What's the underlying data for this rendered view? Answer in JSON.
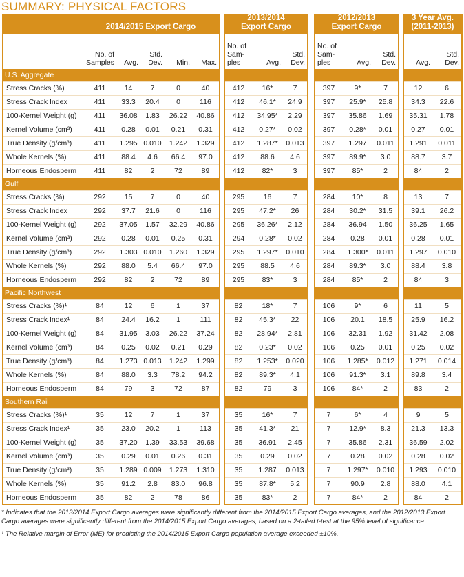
{
  "title": "SUMMARY: PHYSICAL FACTORS",
  "colors": {
    "accent": "#D8901C"
  },
  "panels": [
    {
      "title": "2014/2015 Export Cargo",
      "columns": [
        "No. of\nSamples",
        "Avg.",
        "Std.\nDev.",
        "Min.",
        "Max."
      ]
    },
    {
      "title": "2013/2014\nExport Cargo",
      "columns": [
        "No. of\nSam-\nples",
        "Avg.",
        "Std.\nDev."
      ]
    },
    {
      "title": "2012/2013\nExport Cargo",
      "columns": [
        "No. of\nSam-\nples",
        "Avg.",
        "Std.\nDev."
      ]
    },
    {
      "title": "3 Year Avg.\n(2011-2013)",
      "columns": [
        "Avg.",
        "Std.\nDev."
      ]
    }
  ],
  "sections": [
    {
      "name": "U.S. Aggregate",
      "rows": [
        [
          "Stress Cracks (%)",
          "411",
          "14",
          "7",
          "0",
          "40",
          "412",
          "16*",
          "7",
          "397",
          "9*",
          "7",
          "12",
          "6"
        ],
        [
          "Stress Crack Index",
          "411",
          "33.3",
          "20.4",
          "0",
          "116",
          "412",
          "46.1*",
          "24.9",
          "397",
          "25.9*",
          "25.8",
          "34.3",
          "22.6"
        ],
        [
          "100-Kernel Weight (g)",
          "411",
          "36.08",
          "1.83",
          "26.22",
          "40.86",
          "412",
          "34.95*",
          "2.29",
          "397",
          "35.86",
          "1.69",
          "35.31",
          "1.78"
        ],
        [
          "Kernel Volume (cm³)",
          "411",
          "0.28",
          "0.01",
          "0.21",
          "0.31",
          "412",
          "0.27*",
          "0.02",
          "397",
          "0.28*",
          "0.01",
          "0.27",
          "0.01"
        ],
        [
          "True Density (g/cm³)",
          "411",
          "1.295",
          "0.010",
          "1.242",
          "1.329",
          "412",
          "1.287*",
          "0.013",
          "397",
          "1.297",
          "0.011",
          "1.291",
          "0.011"
        ],
        [
          "Whole Kernels (%)",
          "411",
          "88.4",
          "4.6",
          "66.4",
          "97.0",
          "412",
          "88.6",
          "4.6",
          "397",
          "89.9*",
          "3.0",
          "88.7",
          "3.7"
        ],
        [
          "Horneous Endosperm",
          "411",
          "82",
          "2",
          "72",
          "89",
          "412",
          "82*",
          "3",
          "397",
          "85*",
          "2",
          "84",
          "2"
        ]
      ]
    },
    {
      "name": "Gulf",
      "rows": [
        [
          "Stress Cracks (%)",
          "292",
          "15",
          "7",
          "0",
          "40",
          "295",
          "16",
          "7",
          "284",
          "10*",
          "8",
          "13",
          "7"
        ],
        [
          "Stress Crack Index",
          "292",
          "37.7",
          "21.6",
          "0",
          "116",
          "295",
          "47.2*",
          "26",
          "284",
          "30.2*",
          "31.5",
          "39.1",
          "26.2"
        ],
        [
          "100-Kernel Weight (g)",
          "292",
          "37.05",
          "1.57",
          "32.29",
          "40.86",
          "295",
          "36.26*",
          "2.12",
          "284",
          "36.94",
          "1.50",
          "36.25",
          "1.65"
        ],
        [
          "Kernel Volume (cm³)",
          "292",
          "0.28",
          "0.01",
          "0.25",
          "0.31",
          "294",
          "0.28*",
          "0.02",
          "284",
          "0.28",
          "0.01",
          "0.28",
          "0.01"
        ],
        [
          "True Density (g/cm³)",
          "292",
          "1.303",
          "0.010",
          "1.260",
          "1.329",
          "295",
          "1.297*",
          "0.010",
          "284",
          "1.300*",
          "0.011",
          "1.297",
          "0.010"
        ],
        [
          "Whole Kernels (%)",
          "292",
          "88.0",
          "5.4",
          "66.4",
          "97.0",
          "295",
          "88.5",
          "4.6",
          "284",
          "89.3*",
          "3.0",
          "88.4",
          "3.8"
        ],
        [
          "Horneous Endosperm",
          "292",
          "82",
          "2",
          "72",
          "89",
          "295",
          "83*",
          "3",
          "284",
          "85*",
          "2",
          "84",
          "3"
        ]
      ]
    },
    {
      "name": "Pacific Northwest",
      "rows": [
        [
          "Stress Cracks (%)¹",
          "84",
          "12",
          "6",
          "1",
          "37",
          "82",
          "18*",
          "7",
          "106",
          "9*",
          "6",
          "11",
          "5"
        ],
        [
          "Stress Crack Index¹",
          "84",
          "24.4",
          "16.2",
          "1",
          "111",
          "82",
          "45.3*",
          "22",
          "106",
          "20.1",
          "18.5",
          "25.9",
          "16.2"
        ],
        [
          "100-Kernel Weight (g)",
          "84",
          "31.95",
          "3.03",
          "26.22",
          "37.24",
          "82",
          "28.94*",
          "2.81",
          "106",
          "32.31",
          "1.92",
          "31.42",
          "2.08"
        ],
        [
          "Kernel Volume (cm³)",
          "84",
          "0.25",
          "0.02",
          "0.21",
          "0.29",
          "82",
          "0.23*",
          "0.02",
          "106",
          "0.25",
          "0.01",
          "0.25",
          "0.02"
        ],
        [
          "True Density (g/cm³)",
          "84",
          "1.273",
          "0.013",
          "1.242",
          "1.299",
          "82",
          "1.253*",
          "0.020",
          "106",
          "1.285*",
          "0.012",
          "1.271",
          "0.014"
        ],
        [
          "Whole Kernels (%)",
          "84",
          "88.0",
          "3.3",
          "78.2",
          "94.2",
          "82",
          "89.3*",
          "4.1",
          "106",
          "91.3*",
          "3.1",
          "89.8",
          "3.4"
        ],
        [
          "Horneous Endosperm",
          "84",
          "79",
          "3",
          "72",
          "87",
          "82",
          "79",
          "3",
          "106",
          "84*",
          "2",
          "83",
          "2"
        ]
      ]
    },
    {
      "name": "Southern Rail",
      "rows": [
        [
          "Stress Cracks (%)¹",
          "35",
          "12",
          "7",
          "1",
          "37",
          "35",
          "16*",
          "7",
          "7",
          "6*",
          "4",
          "9",
          "5"
        ],
        [
          "Stress Crack Index¹",
          "35",
          "23.0",
          "20.2",
          "1",
          "113",
          "35",
          "41.3*",
          "21",
          "7",
          "12.9*",
          "8.3",
          "21.3",
          "13.3"
        ],
        [
          "100-Kernel Weight (g)",
          "35",
          "37.20",
          "1.39",
          "33.53",
          "39.68",
          "35",
          "36.91",
          "2.45",
          "7",
          "35.86",
          "2.31",
          "36.59",
          "2.02"
        ],
        [
          "Kernel Volume (cm³)",
          "35",
          "0.29",
          "0.01",
          "0.26",
          "0.31",
          "35",
          "0.29",
          "0.02",
          "7",
          "0.28",
          "0.02",
          "0.28",
          "0.02"
        ],
        [
          "True Density (g/cm³)",
          "35",
          "1.289",
          "0.009",
          "1.273",
          "1.310",
          "35",
          "1.287",
          "0.013",
          "7",
          "1.297*",
          "0.010",
          "1.293",
          "0.010"
        ],
        [
          "Whole Kernels (%)",
          "35",
          "91.2",
          "2.8",
          "83.0",
          "96.8",
          "35",
          "87.8*",
          "5.2",
          "7",
          "90.9",
          "2.8",
          "88.0",
          "4.1"
        ],
        [
          "Horneous Endosperm",
          "35",
          "82",
          "2",
          "78",
          "86",
          "35",
          "83*",
          "2",
          "7",
          "84*",
          "2",
          "84",
          "2"
        ]
      ]
    }
  ],
  "footnotes": {
    "significance": "* Indicates that the 2013/2014 Export Cargo averages were significantly different from the 2014/2015 Export Cargo averages, and the 2012/2013 Export Cargo averages were significantly different from the 2014/2015 Export Cargo averages, based on a 2-tailed t-test at the 95% level of significance.",
    "margin": "¹ The Relative margin of Error (ME) for predicting the 2014/2015 Export Cargo population average exceeded ±10%."
  }
}
